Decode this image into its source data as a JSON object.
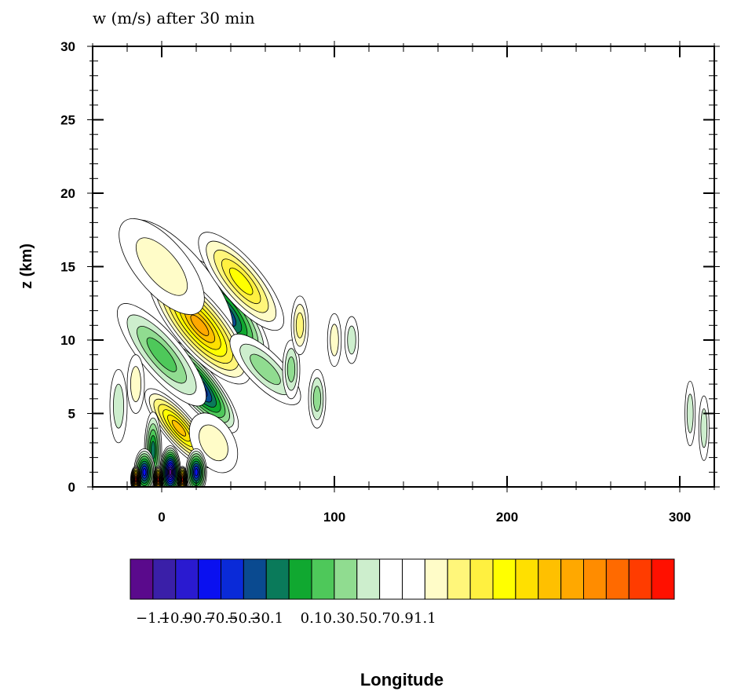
{
  "chart_data": {
    "type": "heatmap",
    "title": "w (m/s) after 30 min",
    "xlabel": "Longitude",
    "ylabel": "z (km)",
    "xlim": [
      -40,
      320
    ],
    "ylim": [
      0,
      30
    ],
    "x_ticks": [
      0,
      100,
      200,
      300
    ],
    "x_tick_labels": [
      "0",
      "100",
      "200",
      "300"
    ],
    "y_ticks": [
      0,
      5,
      10,
      15,
      20,
      25,
      30
    ],
    "y_tick_labels": [
      "0",
      "5",
      "10",
      "15",
      "20",
      "25",
      "30"
    ],
    "grid": false,
    "legend_placement": "bottom",
    "colorbar": {
      "levels": [
        -1.1,
        -0.9,
        -0.7,
        -0.5,
        -0.3,
        -0.1,
        0.1,
        0.3,
        0.5,
        0.7,
        0.9,
        1.1
      ],
      "labels": [
        "-1.1",
        "-0.9",
        "-0.7",
        "-0.5",
        "-0.3",
        "-0.1",
        "0.1",
        "0.3",
        "0.5",
        "0.7",
        "0.9",
        "1.1"
      ],
      "colors": [
        "#5a0a8c",
        "#3a1fa8",
        "#2a1ad0",
        "#0a10f0",
        "#0a2ad8",
        "#0a4a90",
        "#0a7a5a",
        "#10a830",
        "#4ec85a",
        "#90dc90",
        "#cdeecd",
        "#ffffff",
        "#ffffff",
        "#fffcc8",
        "#fff67a",
        "#fff040",
        "#ffff00",
        "#ffe000",
        "#ffc000",
        "#ffa800",
        "#ff8c00",
        "#ff6a00",
        "#ff3c00",
        "#ff1000"
      ]
    },
    "features": [
      {
        "x": 35,
        "z": 12.0,
        "value": -0.75,
        "sx": 14,
        "sz": 4.6,
        "angle": -40
      },
      {
        "x": 14,
        "z": 13.0,
        "value": -0.3,
        "sx": 15,
        "sz": 4.8,
        "angle": -40
      },
      {
        "x": 10,
        "z": 14.0,
        "value": -0.15,
        "sx": 17,
        "sz": 5.2,
        "angle": -40
      },
      {
        "x": 20,
        "z": 7.0,
        "value": -0.95,
        "sx": 11,
        "sz": 4.2,
        "angle": -40
      },
      {
        "x": 0,
        "z": 9.0,
        "value": -0.4,
        "sx": 12,
        "sz": 4.4,
        "angle": -40
      },
      {
        "x": 22,
        "z": 11.0,
        "value": 0.75,
        "sx": 15,
        "sz": 5.0,
        "angle": -40
      },
      {
        "x": 46,
        "z": 14.0,
        "value": 0.5,
        "sx": 12,
        "sz": 4.2,
        "angle": -40
      },
      {
        "x": 10,
        "z": 4.0,
        "value": 0.7,
        "sx": 9,
        "sz": 3.4,
        "angle": -40
      },
      {
        "x": 0,
        "z": 15.0,
        "value": 0.2,
        "sx": 15,
        "sz": 4.0,
        "angle": -40
      },
      {
        "x": 30,
        "z": 3.0,
        "value": 0.2,
        "sx": 12,
        "sz": 2.2,
        "angle": -30
      },
      {
        "x": 60,
        "z": 8.0,
        "value": -0.35,
        "sx": 10,
        "sz": 3.2,
        "angle": -45
      },
      {
        "x": 75,
        "z": 8.0,
        "value": -0.35,
        "sx": 5,
        "sz": 2.0,
        "angle": 0
      },
      {
        "x": 80,
        "z": 11.0,
        "value": 0.25,
        "sx": 5,
        "sz": 2.0,
        "angle": 0
      },
      {
        "x": 90,
        "z": 6.0,
        "value": -0.25,
        "sx": 5,
        "sz": 2.0,
        "angle": 0
      },
      {
        "x": 100,
        "z": 10.0,
        "value": 0.2,
        "sx": 4,
        "sz": 1.8,
        "angle": 0
      },
      {
        "x": 110,
        "z": 10.0,
        "value": -0.2,
        "sx": 4,
        "sz": 1.6,
        "angle": 0
      },
      {
        "x": -25,
        "z": 5.5,
        "value": -0.2,
        "sx": 5,
        "sz": 2.5,
        "angle": 0
      },
      {
        "x": -15,
        "z": 7.0,
        "value": 0.2,
        "sx": 5,
        "sz": 2.0,
        "angle": 0
      },
      {
        "x": -5,
        "z": 2.5,
        "value": -0.6,
        "sx": 5,
        "sz": 2.6,
        "angle": 0
      },
      {
        "x": -10,
        "z": 1.0,
        "value": -0.9,
        "sx": 6,
        "sz": 1.6,
        "angle": 0
      },
      {
        "x": 5,
        "z": 1.0,
        "value": -1.2,
        "sx": 6,
        "sz": 1.8,
        "angle": 0
      },
      {
        "x": 20,
        "z": 1.0,
        "value": -0.9,
        "sx": 6,
        "sz": 1.6,
        "angle": 0
      },
      {
        "x": -15,
        "z": 0.5,
        "value": 1.2,
        "sx": 3,
        "sz": 0.9,
        "angle": 0
      },
      {
        "x": -2,
        "z": 0.5,
        "value": 1.2,
        "sx": 3,
        "sz": 0.9,
        "angle": 0
      },
      {
        "x": 12,
        "z": 0.5,
        "value": 1.2,
        "sx": 3,
        "sz": 0.9,
        "angle": 0
      },
      {
        "x": 306,
        "z": 5.0,
        "value": -0.2,
        "sx": 3,
        "sz": 2.2,
        "angle": 0
      },
      {
        "x": 314,
        "z": 4.0,
        "value": -0.2,
        "sx": 3,
        "sz": 2.2,
        "angle": 0
      }
    ]
  }
}
